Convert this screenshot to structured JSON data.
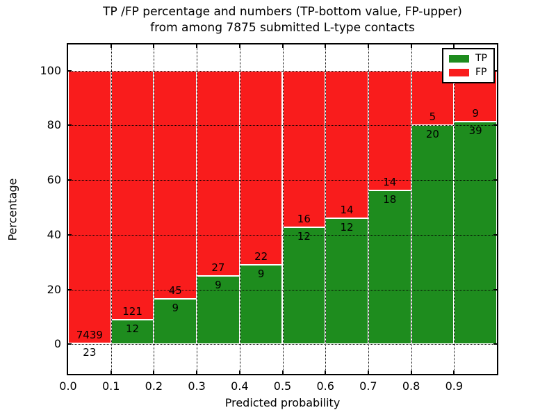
{
  "title": {
    "line1": "TP /FP percentage and numbers (TP-bottom value, FP-upper)",
    "line2": "from among 7875 submitted L-type contacts"
  },
  "axes": {
    "xlabel": "Predicted probability",
    "ylabel": "Percentage",
    "xticks": [
      "0.0",
      "0.1",
      "0.2",
      "0.3",
      "0.4",
      "0.5",
      "0.6",
      "0.7",
      "0.8",
      "0.9"
    ],
    "yticks": [
      0,
      20,
      40,
      60,
      80,
      100
    ]
  },
  "legend": {
    "items": [
      {
        "label": "TP",
        "color": "#1e8c1e"
      },
      {
        "label": "FP",
        "color": "#f91c1c"
      }
    ]
  },
  "colors": {
    "tp": "#1e8c1e",
    "fp": "#f91c1c",
    "bar_edge": "#ffffff",
    "grid": "#000000",
    "background": "#ffffff"
  },
  "chart_data": {
    "type": "bar",
    "subtype": "stacked-100-percent",
    "title": "TP /FP percentage and numbers (TP-bottom value, FP-upper) from among 7875 submitted L-type contacts",
    "xlabel": "Predicted probability",
    "ylabel": "Percentage",
    "total_contacts": 7875,
    "bin_width": 0.1,
    "categories": [
      0.0,
      0.1,
      0.2,
      0.3,
      0.4,
      0.5,
      0.6,
      0.7,
      0.8,
      0.9
    ],
    "series": [
      {
        "name": "TP",
        "counts": [
          23,
          12,
          9,
          9,
          9,
          12,
          12,
          18,
          20,
          39
        ]
      },
      {
        "name": "FP",
        "counts": [
          7439,
          121,
          45,
          27,
          22,
          16,
          14,
          14,
          5,
          9
        ]
      }
    ],
    "tp_percent": [
      0.31,
      9.02,
      16.67,
      25.0,
      29.03,
      42.86,
      46.15,
      56.25,
      80.0,
      81.25
    ],
    "xlim": [
      0.0,
      1.0
    ],
    "ylim": [
      -11,
      110
    ],
    "grid": "dotted",
    "legend_position": "upper right"
  }
}
